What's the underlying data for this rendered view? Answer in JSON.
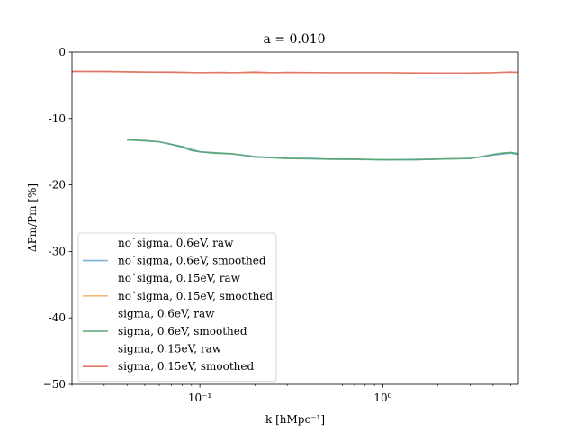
{
  "chart_data": {
    "type": "line",
    "title": "a = 0.010",
    "xlabel": "k [hMpc⁻¹]",
    "ylabel": "ΔPm/Pm [%]",
    "xscale": "log",
    "xlim": [
      0.02,
      5.5
    ],
    "ylim": [
      -50,
      0
    ],
    "yticks": [
      0,
      -10,
      -20,
      -30,
      -40,
      -50
    ],
    "ytick_labels": [
      "0",
      "-10",
      "-20",
      "-30",
      "-40",
      "−50"
    ],
    "xticks": [
      0.1,
      1
    ],
    "xtick_labels": [
      "10⁻¹",
      "10⁰"
    ],
    "grid": false,
    "legend_position": "lower-left",
    "series": [
      {
        "name": "no˙sigma, 0.6eV, raw",
        "color": "#4c72b0",
        "visible_line": false,
        "x": [
          0.04,
          0.06,
          0.08,
          0.1,
          0.15,
          0.2,
          0.3,
          0.5,
          1,
          2,
          3,
          4,
          5,
          5.5
        ],
        "y": [
          -13.2,
          -13.5,
          -14.2,
          -15.0,
          -15.3,
          -15.7,
          -16.0,
          -16.1,
          -16.2,
          -16.1,
          -16.0,
          -15.5,
          -15.2,
          -15.4
        ]
      },
      {
        "name": "no˙sigma, 0.6eV, smoothed",
        "color": "#7fb0d8",
        "visible_line": true,
        "x": [
          0.04,
          0.06,
          0.08,
          0.1,
          0.15,
          0.2,
          0.3,
          0.5,
          1,
          2,
          3,
          4,
          5,
          5.5
        ],
        "y": [
          -13.2,
          -13.5,
          -14.2,
          -15.0,
          -15.3,
          -15.7,
          -16.0,
          -16.1,
          -16.2,
          -16.1,
          -16.0,
          -15.5,
          -15.2,
          -15.4
        ]
      },
      {
        "name": "no˙sigma, 0.15eV, raw",
        "color": "#dd8452",
        "visible_line": false,
        "x": [
          0.02,
          0.05,
          0.1,
          0.2,
          0.5,
          1,
          2,
          3,
          4,
          5,
          5.5
        ],
        "y": [
          -2.9,
          -3.0,
          -3.1,
          -3.1,
          -3.1,
          -3.1,
          -3.15,
          -3.15,
          -3.1,
          -3.0,
          -3.05
        ]
      },
      {
        "name": "no˙sigma, 0.15eV, smoothed",
        "color": "#f6b878",
        "visible_line": true,
        "x": [
          0.02,
          0.05,
          0.1,
          0.2,
          0.5,
          1,
          2,
          3,
          4,
          5,
          5.5
        ],
        "y": [
          -2.9,
          -3.0,
          -3.1,
          -3.1,
          -3.1,
          -3.1,
          -3.15,
          -3.15,
          -3.1,
          -3.0,
          -3.05
        ]
      },
      {
        "name": "sigma, 0.6eV, raw",
        "color": "#55a868",
        "visible_line": false,
        "x": [
          0.04,
          0.06,
          0.08,
          0.1,
          0.15,
          0.2,
          0.3,
          0.5,
          1,
          2,
          3,
          4,
          5,
          5.5
        ],
        "y": [
          -13.2,
          -13.5,
          -14.2,
          -15.0,
          -15.3,
          -15.7,
          -16.0,
          -16.1,
          -16.2,
          -16.1,
          -16.0,
          -15.5,
          -15.2,
          -15.4
        ]
      },
      {
        "name": "sigma, 0.6eV, smoothed",
        "color": "#5aa777",
        "visible_line": true,
        "x": [
          0.04,
          0.05,
          0.06,
          0.07,
          0.08,
          0.09,
          0.1,
          0.12,
          0.15,
          0.18,
          0.2,
          0.25,
          0.3,
          0.4,
          0.5,
          0.7,
          1,
          1.5,
          2,
          3,
          3.5,
          4,
          4.5,
          5,
          5.5
        ],
        "y": [
          -13.2,
          -13.3,
          -13.5,
          -13.9,
          -14.3,
          -14.8,
          -15.0,
          -15.2,
          -15.3,
          -15.6,
          -15.8,
          -15.9,
          -16.0,
          -16.0,
          -16.1,
          -16.1,
          -16.2,
          -16.2,
          -16.1,
          -16.0,
          -15.7,
          -15.4,
          -15.2,
          -15.1,
          -15.3
        ]
      },
      {
        "name": "sigma, 0.15eV, raw",
        "color": "#c44e52",
        "visible_line": false,
        "x": [
          0.02,
          0.05,
          0.1,
          0.2,
          0.5,
          1,
          2,
          3,
          4,
          5,
          5.5
        ],
        "y": [
          -2.9,
          -3.0,
          -3.1,
          -3.1,
          -3.1,
          -3.1,
          -3.15,
          -3.15,
          -3.1,
          -3.0,
          -3.05
        ]
      },
      {
        "name": "sigma, 0.15eV, smoothed",
        "color": "#e0776a",
        "visible_line": true,
        "x": [
          0.02,
          0.03,
          0.05,
          0.07,
          0.1,
          0.13,
          0.15,
          0.2,
          0.25,
          0.3,
          0.5,
          0.7,
          1,
          1.5,
          2,
          3,
          4,
          5,
          5.5
        ],
        "y": [
          -2.9,
          -2.9,
          -3.0,
          -3.0,
          -3.1,
          -3.05,
          -3.1,
          -3.0,
          -3.1,
          -3.05,
          -3.1,
          -3.1,
          -3.1,
          -3.15,
          -3.15,
          -3.15,
          -3.1,
          -3.0,
          -3.05
        ]
      }
    ]
  }
}
